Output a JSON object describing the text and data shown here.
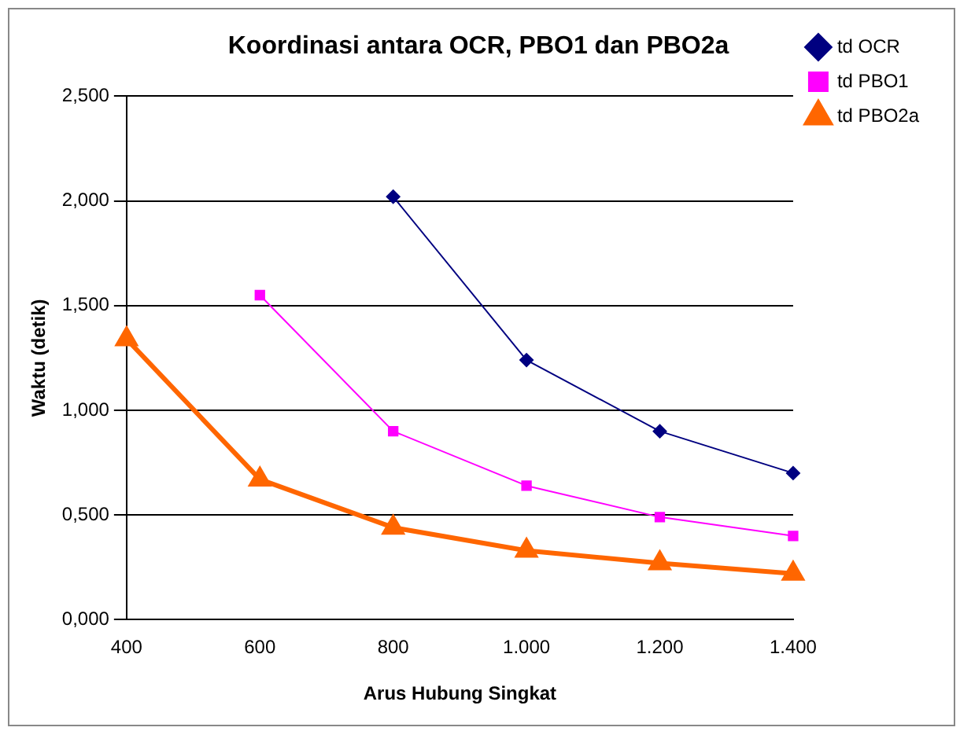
{
  "chart_data": {
    "type": "line",
    "title": "Koordinasi antara OCR, PBO1 dan PBO2a",
    "xlabel": "Arus Hubung Singkat",
    "ylabel": "Waktu (detik)",
    "categories": [
      "400",
      "600",
      "800",
      "1.000",
      "1.200",
      "1.400"
    ],
    "series": [
      {
        "name": "td OCR",
        "color": "#000080",
        "marker": "diamond",
        "values": [
          null,
          null,
          2.02,
          1.24,
          0.9,
          0.7
        ]
      },
      {
        "name": "td PBO1",
        "color": "#ff00ff",
        "marker": "square",
        "values": [
          null,
          1.55,
          0.9,
          0.64,
          0.49,
          0.4
        ]
      },
      {
        "name": "td PBO2a",
        "color": "#ff6600",
        "marker": "triangle",
        "values": [
          1.34,
          0.67,
          0.44,
          0.33,
          0.27,
          0.22
        ]
      }
    ],
    "ylim": [
      0,
      2.5
    ],
    "yticks": [
      {
        "value": 0,
        "label": "0,000"
      },
      {
        "value": 0.5,
        "label": "0,500"
      },
      {
        "value": 1,
        "label": "1,000"
      },
      {
        "value": 1.5,
        "label": "1,500"
      },
      {
        "value": 2,
        "label": "2,000"
      },
      {
        "value": 2.5,
        "label": "2,500"
      }
    ],
    "grid": "y",
    "legend": "top right",
    "line_style": "solid"
  }
}
